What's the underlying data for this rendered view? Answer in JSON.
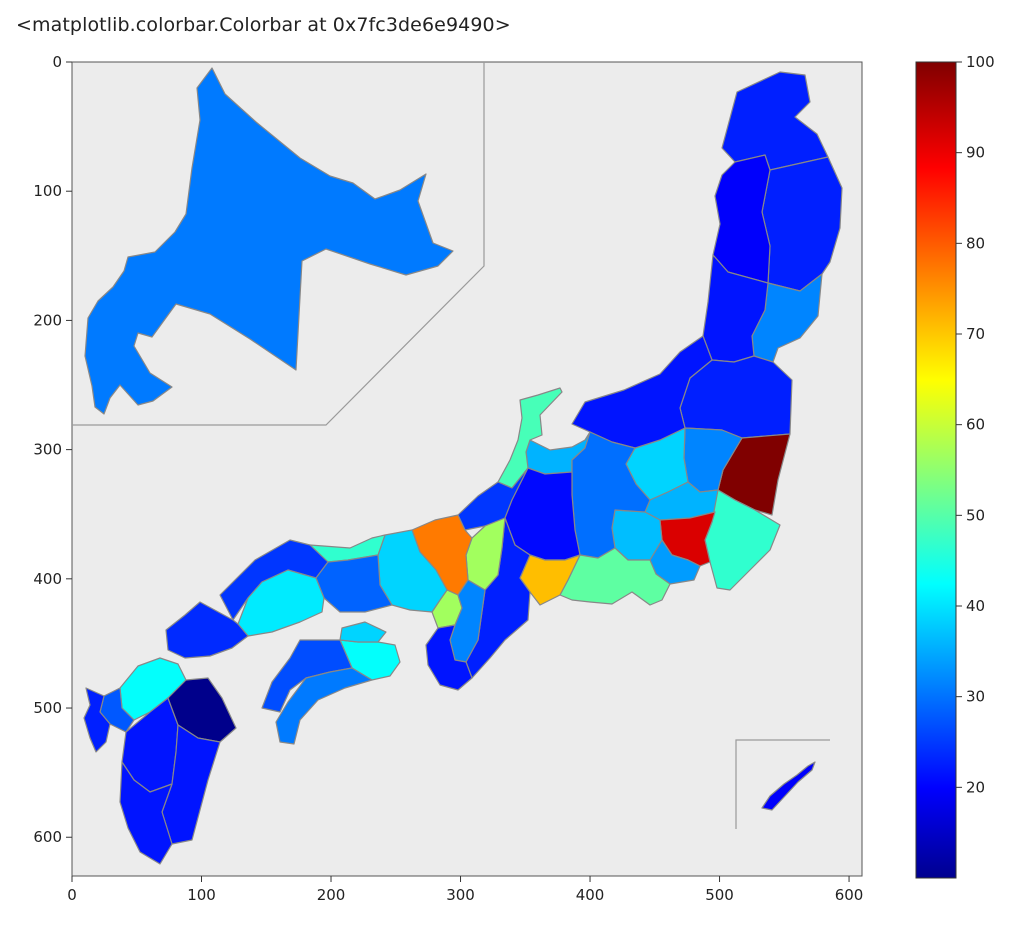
{
  "output_repr": "<matplotlib.colorbar.Colorbar at 0x7fc3de6e9490>",
  "colors": {
    "map_background": "#ececec",
    "prefecture_edge": "#888888",
    "inset_frame": "#9a9a9a",
    "colormap": "jet"
  },
  "chart_data": {
    "type": "choropleth",
    "title": "",
    "xlabel": "",
    "ylabel": "",
    "xlim": [
      0,
      610
    ],
    "ylim": [
      630,
      0
    ],
    "x_ticks": [
      0,
      100,
      200,
      300,
      400,
      500,
      600
    ],
    "y_ticks": [
      0,
      100,
      200,
      300,
      400,
      500,
      600
    ],
    "colorbar": {
      "colormap": "jet",
      "range": [
        10,
        100
      ],
      "ticks": [
        20,
        30,
        40,
        50,
        60,
        70,
        80,
        90,
        100
      ]
    },
    "insets": [
      "Hokkaido",
      "Okinawa"
    ],
    "regions": [
      {
        "name": "Hokkaido",
        "value": 32
      },
      {
        "name": "Aomori",
        "value": 24
      },
      {
        "name": "Iwate",
        "value": 24
      },
      {
        "name": "Akita",
        "value": 21
      },
      {
        "name": "Miyagi",
        "value": 33
      },
      {
        "name": "Yamagata",
        "value": 23
      },
      {
        "name": "Fukushima",
        "value": 24
      },
      {
        "name": "Ibaraki",
        "value": 100
      },
      {
        "name": "Tochigi",
        "value": 33
      },
      {
        "name": "Gunma",
        "value": 40
      },
      {
        "name": "Saitama",
        "value": 37
      },
      {
        "name": "Chiba",
        "value": 48
      },
      {
        "name": "Tokyo",
        "value": 92
      },
      {
        "name": "Kanagawa",
        "value": 35
      },
      {
        "name": "Niigata",
        "value": 23
      },
      {
        "name": "Toyama",
        "value": 37
      },
      {
        "name": "Ishikawa",
        "value": 50
      },
      {
        "name": "Fukui",
        "value": 26
      },
      {
        "name": "Yamanashi",
        "value": 38
      },
      {
        "name": "Nagano",
        "value": 31
      },
      {
        "name": "Gifu",
        "value": 22
      },
      {
        "name": "Shizuoka",
        "value": 52
      },
      {
        "name": "Aichi",
        "value": 72
      },
      {
        "name": "Mie",
        "value": 24
      },
      {
        "name": "Shiga",
        "value": 58
      },
      {
        "name": "Kyoto",
        "value": 78
      },
      {
        "name": "Osaka",
        "value": 58
      },
      {
        "name": "Hyogo",
        "value": 40
      },
      {
        "name": "Nara",
        "value": 33
      },
      {
        "name": "Wakayama",
        "value": 23
      },
      {
        "name": "Tottori",
        "value": 48
      },
      {
        "name": "Shimane",
        "value": 26
      },
      {
        "name": "Okayama",
        "value": 30
      },
      {
        "name": "Hiroshima",
        "value": 42
      },
      {
        "name": "Yamaguchi",
        "value": 25
      },
      {
        "name": "Tokushima",
        "value": 44
      },
      {
        "name": "Kagawa",
        "value": 40
      },
      {
        "name": "Ehime",
        "value": 28
      },
      {
        "name": "Kochi",
        "value": 32
      },
      {
        "name": "Fukuoka",
        "value": 44
      },
      {
        "name": "Saga",
        "value": 29
      },
      {
        "name": "Nagasaki",
        "value": 24
      },
      {
        "name": "Kumamoto",
        "value": 23
      },
      {
        "name": "Oita",
        "value": 11
      },
      {
        "name": "Miyazaki",
        "value": 23
      },
      {
        "name": "Kagoshima",
        "value": 23
      },
      {
        "name": "Okinawa",
        "value": 21
      }
    ]
  }
}
